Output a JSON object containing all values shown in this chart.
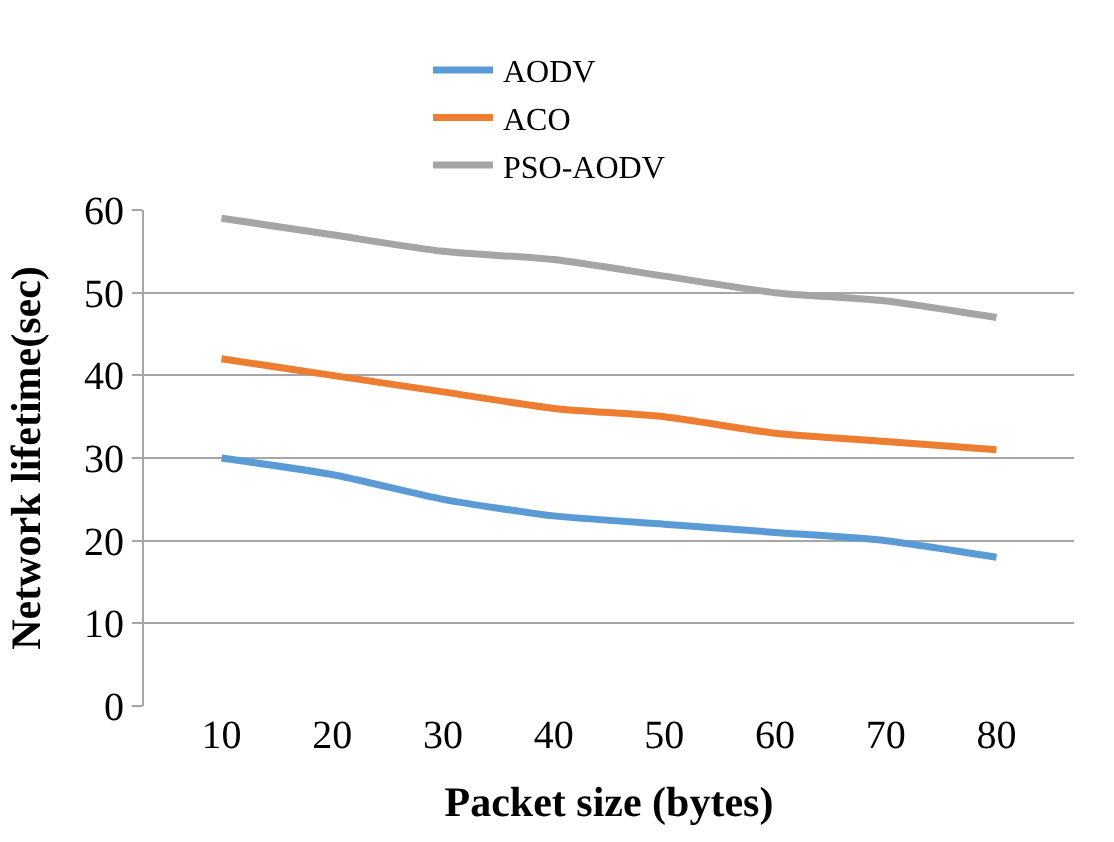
{
  "chart_data": {
    "type": "line",
    "xlabel": "Packet size (bytes)",
    "ylabel": "Network lifetime(sec)",
    "categories": [
      "10",
      "20",
      "30",
      "40",
      "50",
      "60",
      "70",
      "80"
    ],
    "series": [
      {
        "name": "AODV",
        "color": "#5b9bd5",
        "values": [
          30,
          28,
          25,
          23,
          22,
          21,
          20,
          18
        ]
      },
      {
        "name": "ACO",
        "color": "#ed7d31",
        "values": [
          42,
          40,
          38,
          36,
          35,
          33,
          32,
          31
        ]
      },
      {
        "name": "PSO-AODV",
        "color": "#a5a5a5",
        "values": [
          59,
          57,
          55,
          54,
          52,
          50,
          49,
          47
        ]
      }
    ],
    "ylim": [
      0,
      60
    ],
    "yticks": [
      0,
      10,
      20,
      30,
      40,
      50,
      60
    ],
    "grid": "y",
    "legend": "top",
    "marker": "none",
    "line_style": "solid"
  }
}
